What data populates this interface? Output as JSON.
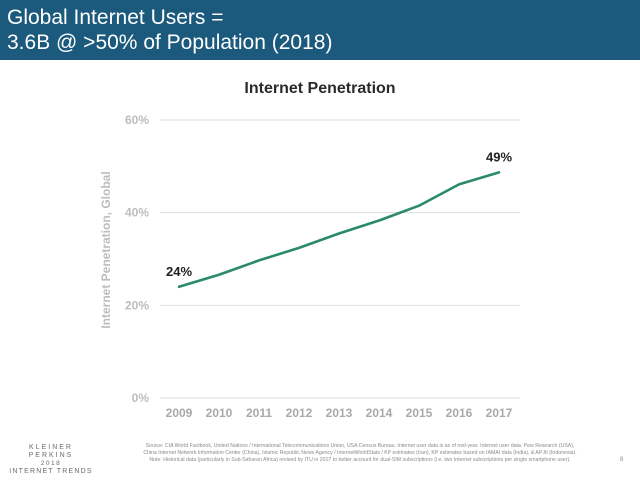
{
  "header": {
    "line1": "Global Internet Users =",
    "line2": "3.6B @ >50% of Population (2018)"
  },
  "chart_data": {
    "type": "line",
    "title": "Internet Penetration",
    "xlabel": "",
    "ylabel": "Internet Penetration, Global",
    "x": [
      "2009",
      "2010",
      "2011",
      "2012",
      "2013",
      "2014",
      "2015",
      "2016",
      "2017"
    ],
    "series": [
      {
        "values": [
          24,
          26.6,
          29.7,
          32.4,
          35.5,
          38.3,
          41.5,
          46.1,
          48.7
        ],
        "color": "#2a8a6a"
      }
    ],
    "y_ticks": [
      "60%",
      "40%",
      "20%",
      "0%"
    ],
    "ylim": [
      0,
      60
    ],
    "grid": true,
    "data_labels": [
      {
        "index": 0,
        "text": "24%"
      },
      {
        "index": 8,
        "text": "49%"
      }
    ]
  },
  "footer": {
    "logo_line1": "KLEINER PERKINS",
    "logo_line2": "2018",
    "logo_line3": "INTERNET TRENDS",
    "source": "Source: CIA World Factbook, United Nations / International Telecommunications Union, USA Census Bureau. Internet user data is as of mid-year. Internet user data: Pew Research (USA), China Internet Network Information Center (China), Islamic Republic News Agency / InternetWorldStats / KP estimates (Iran), KP estimates based on IAMAI data (India), & APJII (Indonesia). Note: Historical data (particularly in Sub-Saharan Africa) revised by ITU in 2017 to better account for dual-SIM subscriptions (i.e. two Internet subscriptions per single smartphone user).",
    "page": "8"
  }
}
